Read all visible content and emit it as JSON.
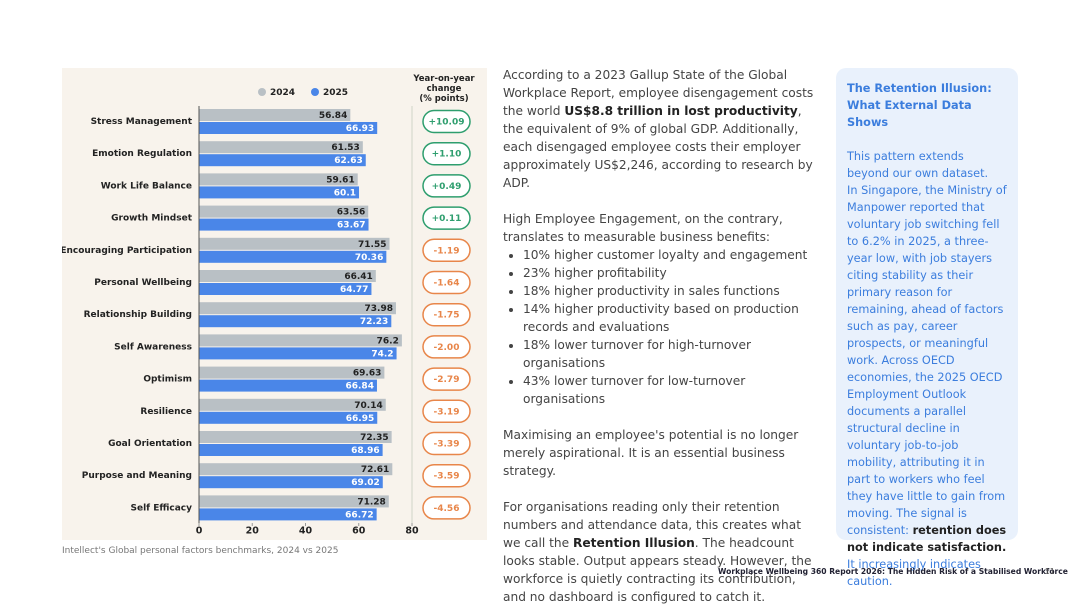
{
  "chart_data": {
    "type": "bar",
    "orientation": "horizontal",
    "categories": [
      "Stress Management",
      "Emotion Regulation",
      "Work Life Balance",
      "Growth Mindset",
      "Encouraging Participation",
      "Personal Wellbeing",
      "Relationship Building",
      "Self Awareness",
      "Optimism",
      "Resilience",
      "Goal Orientation",
      "Purpose and Meaning",
      "Self Efficacy"
    ],
    "series": [
      {
        "name": "2024",
        "color": "#b9c0c5",
        "values": [
          56.84,
          61.53,
          59.61,
          63.56,
          71.55,
          66.41,
          73.98,
          76.2,
          69.63,
          70.14,
          72.35,
          72.61,
          71.28
        ]
      },
      {
        "name": "2025",
        "color": "#4a86e8",
        "values": [
          66.93,
          62.63,
          60.1,
          63.67,
          70.36,
          64.77,
          72.23,
          74.2,
          66.84,
          66.95,
          68.96,
          69.02,
          66.72
        ]
      }
    ],
    "change": {
      "title": "Year-on-year change (% points)",
      "values": [
        10.09,
        1.1,
        0.49,
        0.11,
        -1.19,
        -1.64,
        -1.75,
        -2.0,
        -2.79,
        -3.19,
        -3.39,
        -3.59,
        -4.56
      ],
      "value_labels": [
        "+10.09",
        "+1.10",
        "+0.49",
        "+0.11",
        "-1.19",
        "-1.64",
        "-1.75",
        "-2.00",
        "-2.79",
        "-3.19",
        "-3.39",
        "-3.59",
        "-4.56"
      ],
      "positive_color": "#2e9e6e",
      "negative_color": "#e8864a"
    },
    "xlim": [
      0,
      80
    ],
    "xticks": [
      0,
      20,
      40,
      60,
      80
    ],
    "legend": "top",
    "caption": "Intellect's Global personal factors benchmarks, 2024 vs 2025"
  },
  "body": [
    {
      "runs": [
        {
          "text": "According to a 2023 Gallup State of the Global Workplace Report, employee disengagement costs the world "
        },
        {
          "text": "US$8.8 trillion in lost productivity",
          "bold": true
        },
        {
          "text": ", the equivalent of 9% of global GDP. Additionally, each disengaged employee costs their employer approximately US$2,246, according to research by ADP."
        }
      ]
    },
    {
      "runs": [
        {
          "text": "High Employee Engagement, on the contrary, translates to measurable business benefits:"
        }
      ],
      "items": [
        "10% higher customer loyalty and engagement",
        "23% higher profitability",
        "18% higher productivity in sales functions",
        "14% higher productivity based on production records and evaluations",
        "18% lower turnover for high-turnover organisations",
        "43% lower turnover for low-turnover organisations"
      ]
    },
    {
      "runs": [
        {
          "text": "Maximising an employee's potential is no longer merely aspirational. It is an essential business strategy."
        }
      ]
    },
    {
      "runs": [
        {
          "text": "For organisations reading only their retention numbers and attendance data, this creates what we call the "
        },
        {
          "text": "Retention Illusion",
          "bold": true
        },
        {
          "text": ". The headcount looks stable. Output appears steady. However, the workforce is quietly contracting its contribution, and no dashboard is configured to catch it."
        }
      ]
    }
  ],
  "sidebar": {
    "title": "The Retention Illusion: What External Data Shows",
    "paragraphs": [
      {
        "runs": [
          {
            "text": "This pattern extends beyond our own dataset."
          }
        ]
      },
      {
        "runs": [
          {
            "text": "In Singapore, the Ministry of Manpower reported that voluntary job switching fell to 6.2% in 2025, a three-year low, with job stayers citing stability as their primary reason for remaining, ahead of factors such as pay, career prospects, or meaningful work. Across OECD economies, the 2025 OECD Employment Outlook documents a parallel structural decline in voluntary job-to-job mobility, attributing it in part to workers who feel they have little to gain from moving. The signal is consistent: "
          },
          {
            "text": "retention does not indicate satisfaction.",
            "bold": true
          },
          {
            "text": " It increasingly indicates caution."
          }
        ]
      }
    ]
  },
  "footer": {
    "title": "Workplace Wellbeing 360 Report 2026: The Hidden Risk of a Stabilised Workforce",
    "page": "11"
  }
}
